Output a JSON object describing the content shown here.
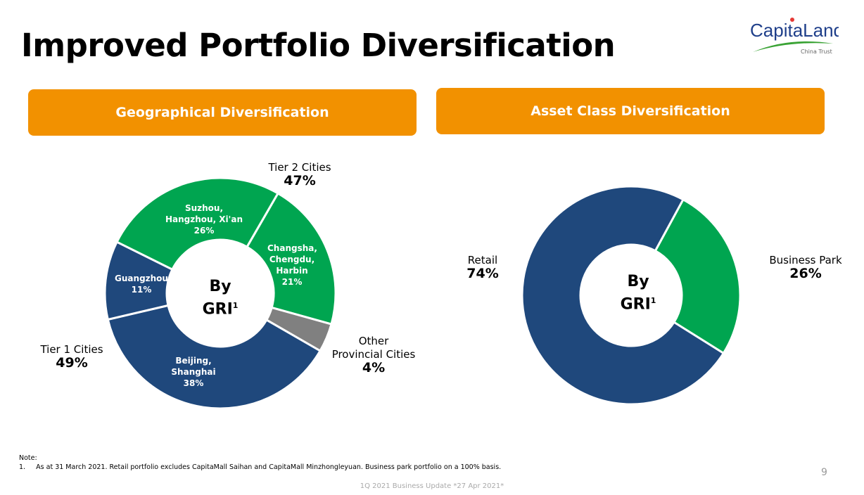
{
  "title": "Improved Portfolio Diversification",
  "logo": {
    "text": "CapitaLand",
    "subtext": "China Trust"
  },
  "colors": {
    "navy": "#1F487C",
    "green": "#00A550",
    "grey": "#808080",
    "orange": "#F29100"
  },
  "chart_data": [
    {
      "type": "pie",
      "variant": "donut",
      "title": "Geographical Diversification",
      "center_label": "By",
      "center_label2": "GRI",
      "center_sup": "1",
      "slices": [
        {
          "label": "Changsha, Chengdu, Harbin",
          "lines": [
            "Changsha,",
            "Chengdu,",
            "Harbin"
          ],
          "value": 21,
          "display": "21%",
          "color": "#00A550"
        },
        {
          "label": "Other Provincial Cities",
          "value": 4,
          "display": "4%",
          "color": "#808080"
        },
        {
          "label": "Beijing, Shanghai",
          "lines": [
            "Beijing,",
            "Shanghai"
          ],
          "value": 38,
          "display": "38%",
          "color": "#1F487C"
        },
        {
          "label": "Guangzhou",
          "lines": [
            "Guangzhou"
          ],
          "value": 11,
          "display": "11%",
          "color": "#1F487C"
        },
        {
          "label": "Suzhou, Hangzhou, Xi'an",
          "lines": [
            "Suzhou,",
            "Hangzhou, Xi'an"
          ],
          "value": 26,
          "display": "26%",
          "color": "#00A550"
        }
      ],
      "groups": [
        {
          "label": "Tier 2 Cities",
          "value": "47%"
        },
        {
          "label": "Tier 1 Cities",
          "value": "49%"
        },
        {
          "label": "Other Provincial Cities",
          "lines": [
            "Other",
            "Provincial Cities"
          ],
          "value": "4%"
        }
      ]
    },
    {
      "type": "pie",
      "variant": "donut",
      "title": "Asset Class Diversification",
      "center_label": "By",
      "center_label2": "GRI",
      "center_sup": "1",
      "slices": [
        {
          "label": "Business Park",
          "value": 26,
          "display": "26%",
          "color": "#00A550"
        },
        {
          "label": "Retail",
          "value": 74,
          "display": "74%",
          "color": "#1F487C"
        }
      ]
    }
  ],
  "note": {
    "heading": "Note:",
    "items": [
      "1.     As at 31 March 2021. Retail portfolio excludes CapitaMall Saihan and CapitaMall Minzhongleyuan. Business park portfolio on a 100% basis."
    ]
  },
  "page_number": "9",
  "footer": "1Q 2021 Business Update *27 Apr 2021*"
}
